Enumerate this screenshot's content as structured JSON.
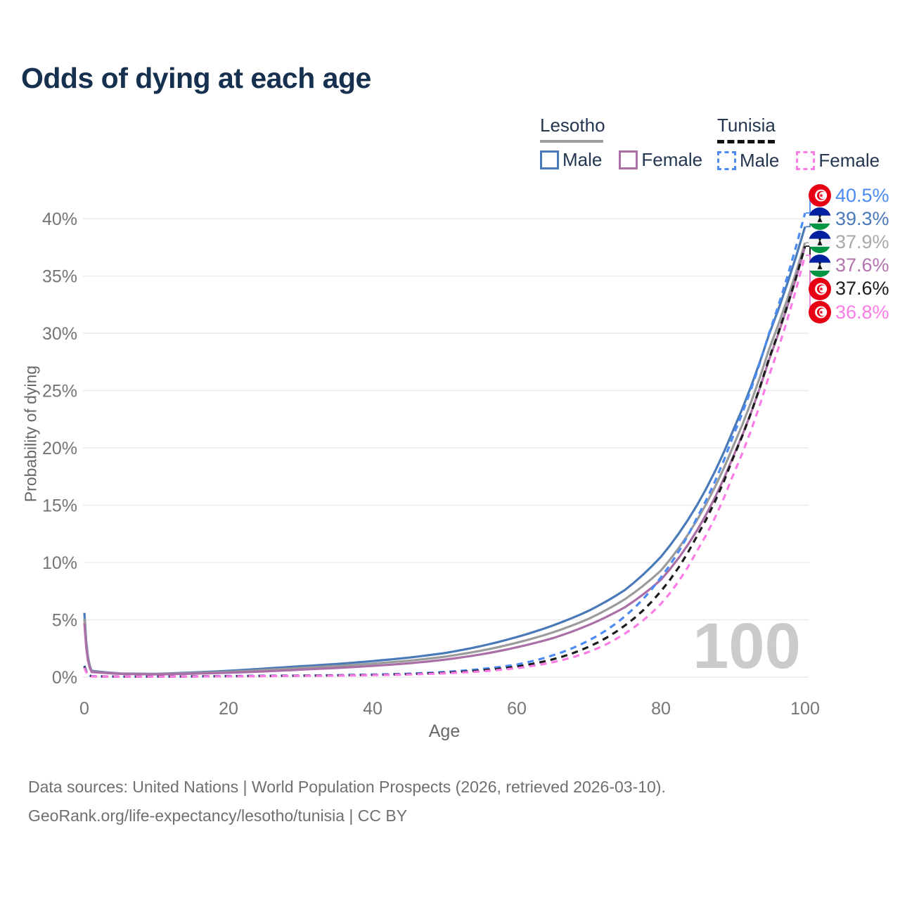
{
  "title": "Odds of dying at each age",
  "watermark": "100",
  "legend": {
    "groups": [
      {
        "label": "Lesotho",
        "color": "#9e9e9e",
        "style": "solid",
        "entries": [
          {
            "label": "Male"
          },
          {
            "label": "Female"
          }
        ]
      },
      {
        "label": "Tunisia",
        "color": "#111111",
        "style": "dashed",
        "entries": [
          {
            "label": "Male"
          },
          {
            "label": "Female"
          }
        ]
      }
    ]
  },
  "end_labels": [
    {
      "country": "Tunisia",
      "series": "Tunisia Male",
      "series_index": 3,
      "value": "40.5%",
      "color": "#4b8bf3"
    },
    {
      "country": "Lesotho",
      "series": "Lesotho Male",
      "series_index": 0,
      "value": "39.3%",
      "color": "#4a79b8"
    },
    {
      "country": "Lesotho",
      "series": "Lesotho Both sexes",
      "series_index": 1,
      "value": "37.9%",
      "color": "#a8a8a8"
    },
    {
      "country": "Lesotho",
      "series": "Lesotho Female",
      "series_index": 2,
      "value": "37.6%",
      "color": "#b273ae"
    },
    {
      "country": "Tunisia",
      "series": "Tunisia Both sexes",
      "series_index": 4,
      "value": "37.6%",
      "color": "#1c1c1c"
    },
    {
      "country": "Tunisia",
      "series": "Tunisia Female",
      "series_index": 5,
      "value": "36.8%",
      "color": "#fb7ce4"
    }
  ],
  "axes": {
    "x_label": "Age",
    "y_label": "Probability of dying"
  },
  "footer": {
    "line1": "Data sources: United Nations | World Population Prospects (2026, retrieved 2026-03-10).",
    "line2": "GeoRank.org/life-expectancy/lesotho/tunisia | CC BY"
  },
  "chart_data": {
    "type": "line",
    "title": "Odds of dying at each age",
    "xlabel": "Age",
    "ylabel": "Probability of dying",
    "xlim": [
      0,
      100
    ],
    "ylim": [
      0,
      42
    ],
    "grid": "horizontal",
    "legend_position": "top-right",
    "x_ticks": [
      0,
      20,
      40,
      60,
      80,
      100
    ],
    "y_tick_values": [
      0,
      5,
      10,
      15,
      20,
      25,
      30,
      35,
      40
    ],
    "y_tick_labels": [
      "0%",
      "5%",
      "10%",
      "15%",
      "20%",
      "25%",
      "30%",
      "35%",
      "40%"
    ],
    "x": [
      0,
      1,
      5,
      10,
      15,
      20,
      25,
      30,
      35,
      40,
      45,
      50,
      55,
      60,
      65,
      70,
      75,
      80,
      85,
      90,
      95,
      100
    ],
    "series": [
      {
        "name": "Lesotho Male",
        "style": "solid",
        "color": "#4a79b8",
        "values": [
          5.6,
          0.55,
          0.32,
          0.28,
          0.4,
          0.55,
          0.75,
          0.95,
          1.15,
          1.4,
          1.7,
          2.1,
          2.7,
          3.5,
          4.5,
          5.8,
          7.6,
          10.5,
          15.0,
          21.5,
          29.9,
          39.3
        ]
      },
      {
        "name": "Lesotho Both sexes",
        "style": "solid",
        "color": "#9b9b9b",
        "values": [
          5.1,
          0.5,
          0.3,
          0.26,
          0.35,
          0.46,
          0.62,
          0.8,
          0.97,
          1.18,
          1.43,
          1.78,
          2.3,
          3.0,
          3.9,
          5.1,
          6.8,
          9.3,
          13.7,
          20.1,
          28.6,
          37.9
        ]
      },
      {
        "name": "Lesotho Female",
        "style": "solid",
        "color": "#ab6fa8",
        "values": [
          4.7,
          0.45,
          0.28,
          0.24,
          0.3,
          0.38,
          0.5,
          0.65,
          0.8,
          0.98,
          1.2,
          1.52,
          1.98,
          2.6,
          3.4,
          4.55,
          6.1,
          8.5,
          12.8,
          19.2,
          27.7,
          37.6
        ]
      },
      {
        "name": "Tunisia Male",
        "style": "dashed",
        "color": "#4b8bf3",
        "values": [
          1.0,
          0.08,
          0.05,
          0.05,
          0.07,
          0.1,
          0.12,
          0.14,
          0.17,
          0.22,
          0.3,
          0.45,
          0.7,
          1.1,
          1.9,
          3.2,
          5.3,
          8.7,
          13.9,
          21.0,
          30.0,
          40.5
        ]
      },
      {
        "name": "Tunisia Both sexes",
        "style": "dashed",
        "color": "#1c1c1c",
        "values": [
          0.92,
          0.07,
          0.045,
          0.045,
          0.06,
          0.08,
          0.1,
          0.12,
          0.15,
          0.19,
          0.26,
          0.38,
          0.58,
          0.92,
          1.55,
          2.65,
          4.5,
          7.5,
          12.3,
          19.1,
          27.8,
          37.6
        ]
      },
      {
        "name": "Tunisia Female",
        "style": "dashed",
        "color": "#fb7ce4",
        "values": [
          0.83,
          0.06,
          0.04,
          0.04,
          0.05,
          0.07,
          0.09,
          0.11,
          0.13,
          0.17,
          0.23,
          0.33,
          0.5,
          0.78,
          1.3,
          2.2,
          3.8,
          6.4,
          11.0,
          17.6,
          26.3,
          36.8
        ]
      }
    ]
  }
}
